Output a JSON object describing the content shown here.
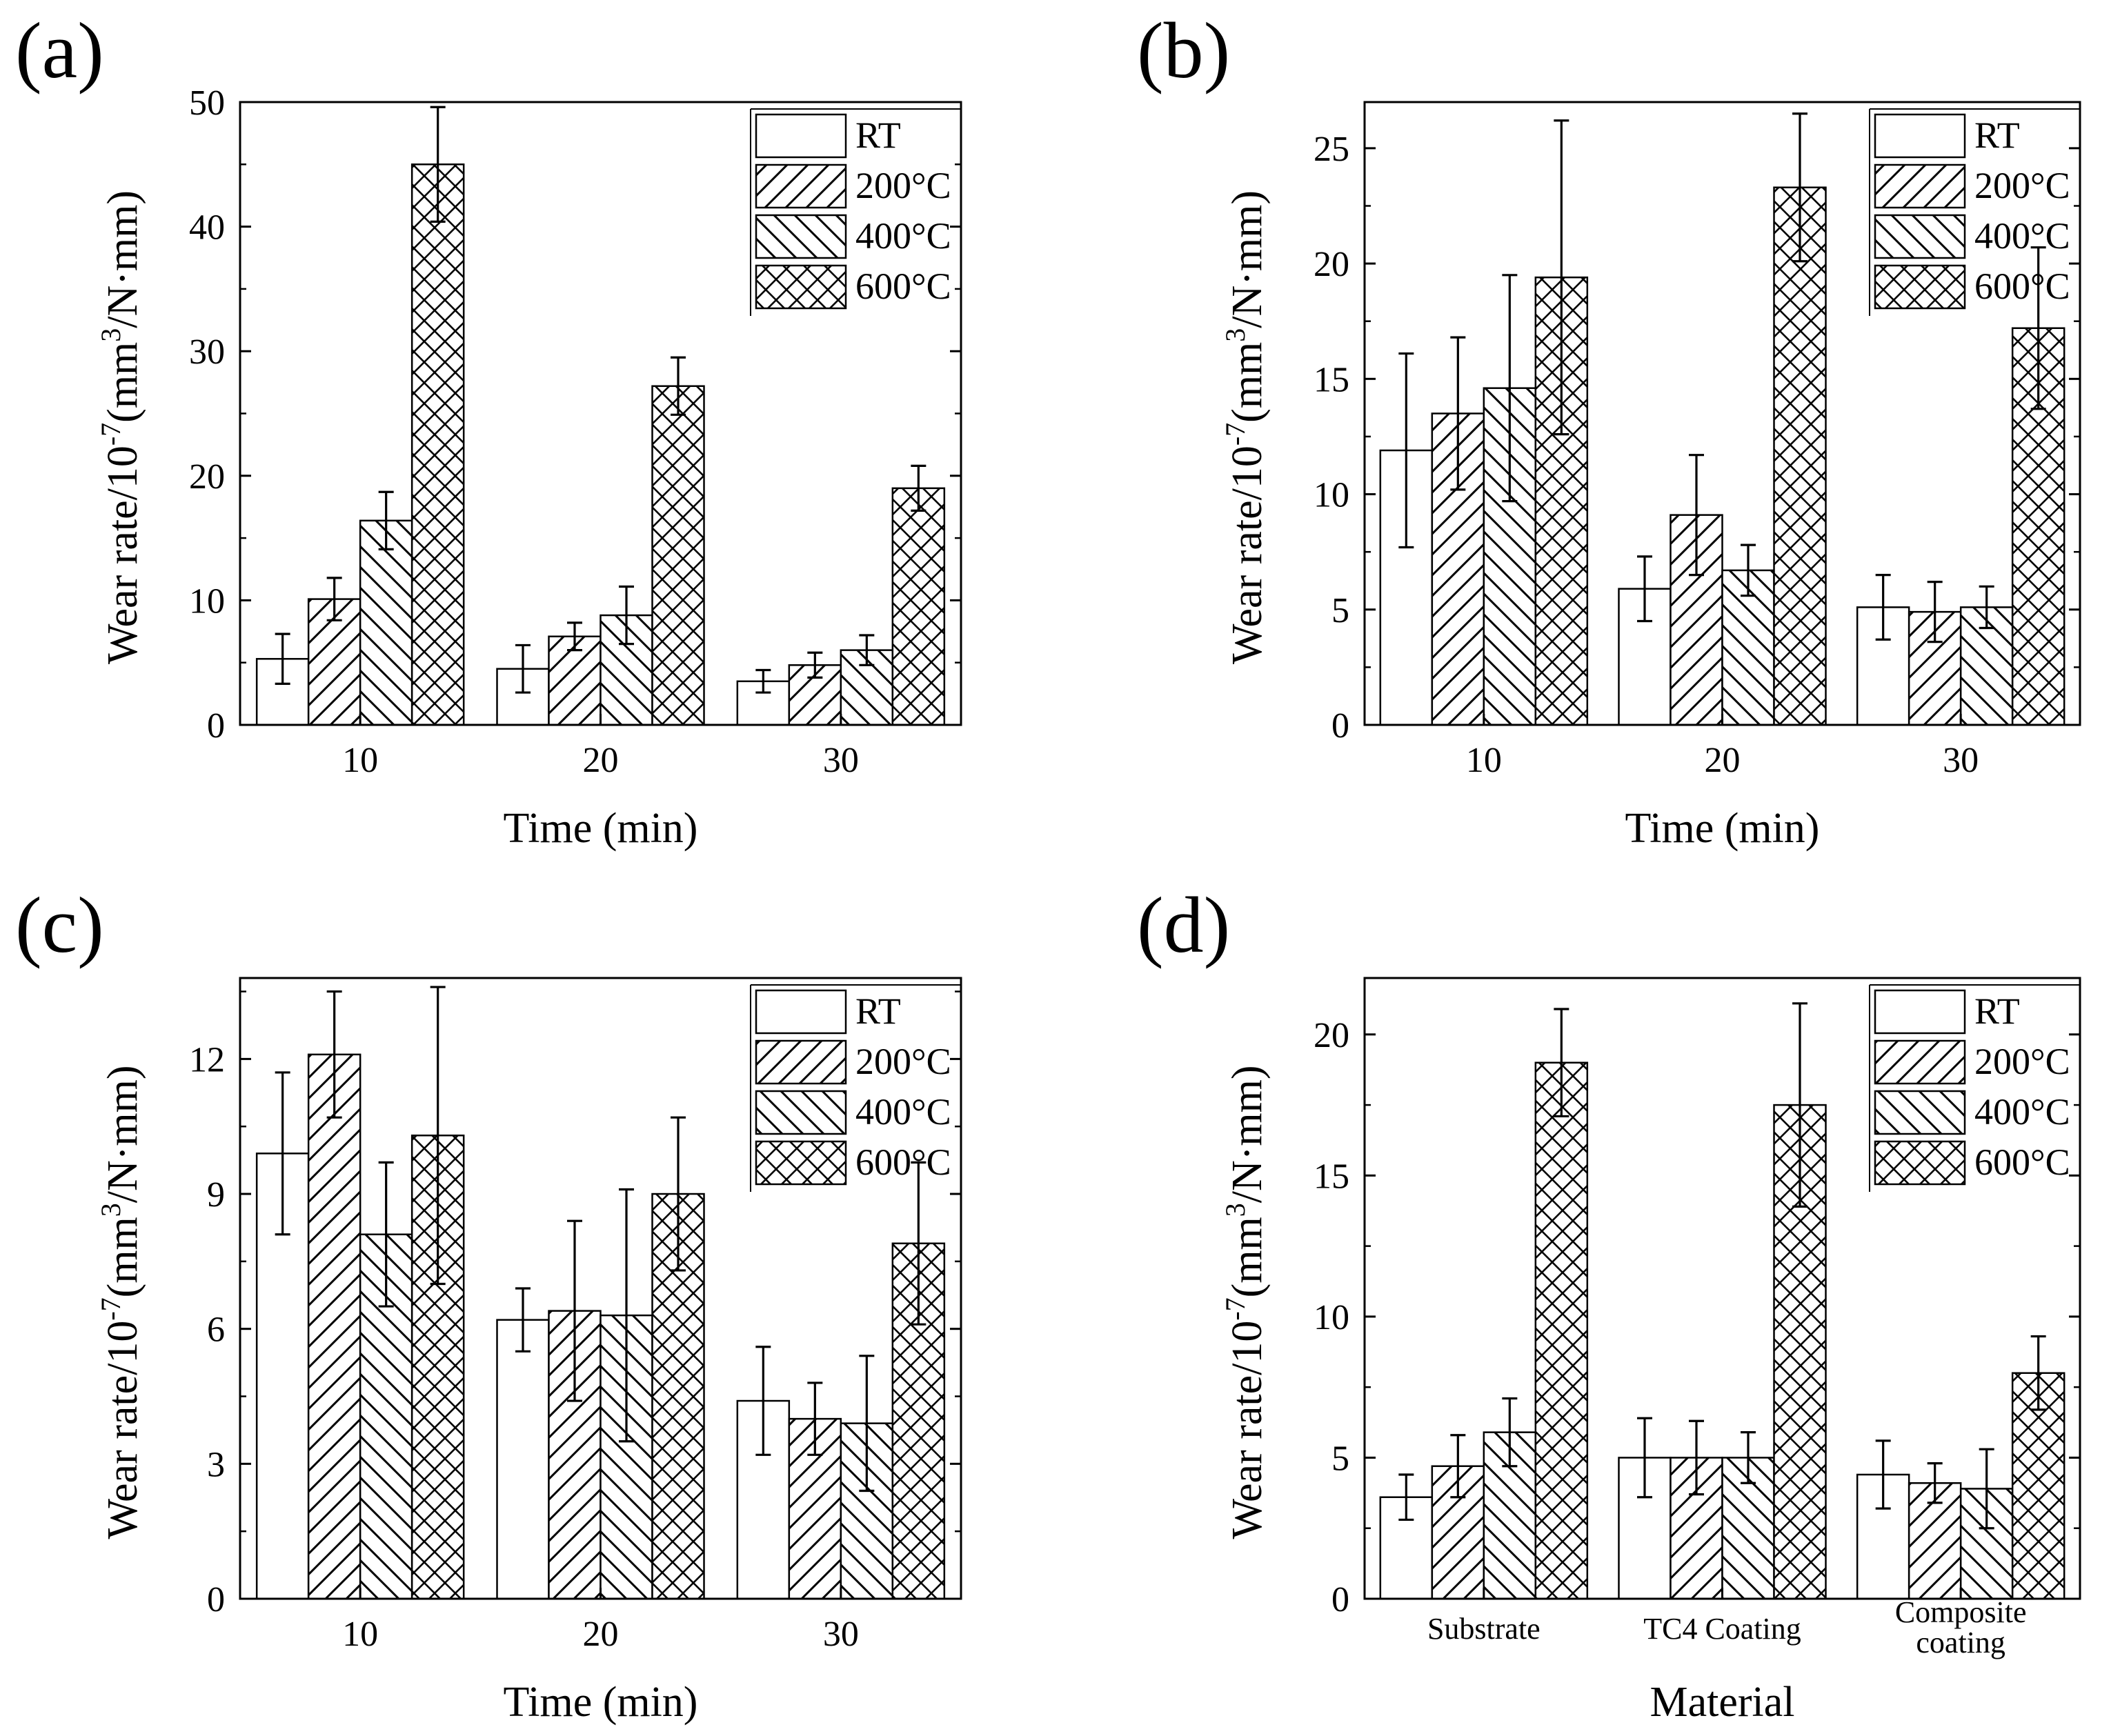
{
  "legend": [
    "RT",
    "200°C",
    "400°C",
    "600°C"
  ],
  "chart_data": [
    {
      "type": "bar",
      "panel": "(a)",
      "categories": [
        "10",
        "20",
        "30"
      ],
      "xlabel": "Time (min)",
      "ylabel": "Wear rate/10",
      "ylabel_exp1": "-7",
      "ylabel_mid": "(mm",
      "ylabel_exp2": "3",
      "ylabel_end": "/N·mm)",
      "ylim": [
        0,
        50
      ],
      "yticks": [
        0,
        10,
        20,
        30,
        40,
        50
      ],
      "legend_position": "top-right",
      "series": [
        {
          "name": "RT",
          "values": [
            5.3,
            4.5,
            3.5
          ],
          "errors": [
            2.0,
            1.9,
            0.9
          ]
        },
        {
          "name": "200°C",
          "values": [
            10.1,
            7.1,
            4.8
          ],
          "errors": [
            1.7,
            1.1,
            1.0
          ]
        },
        {
          "name": "400°C",
          "values": [
            16.4,
            8.8,
            6.0
          ],
          "errors": [
            2.3,
            2.3,
            1.2
          ]
        },
        {
          "name": "600°C",
          "values": [
            45.0,
            27.2,
            19.0
          ],
          "errors": [
            4.6,
            2.3,
            1.8
          ]
        }
      ]
    },
    {
      "type": "bar",
      "panel": "(b)",
      "categories": [
        "10",
        "20",
        "30"
      ],
      "xlabel": "Time (min)",
      "ylabel": "Wear rate/10",
      "ylabel_exp1": "-7",
      "ylabel_mid": "(mm",
      "ylabel_exp2": "3",
      "ylabel_end": "/N·mm)",
      "ylim": [
        0,
        27
      ],
      "yticks": [
        0,
        5,
        10,
        15,
        20,
        25
      ],
      "legend_position": "top-right",
      "series": [
        {
          "name": "RT",
          "values": [
            11.9,
            5.9,
            5.1
          ],
          "errors": [
            4.2,
            1.4,
            1.4
          ]
        },
        {
          "name": "200°C",
          "values": [
            13.5,
            9.1,
            4.9
          ],
          "errors": [
            3.3,
            2.6,
            1.3
          ]
        },
        {
          "name": "400°C",
          "values": [
            14.6,
            6.7,
            5.1
          ],
          "errors": [
            4.9,
            1.1,
            0.9
          ]
        },
        {
          "name": "600°C",
          "values": [
            19.4,
            23.3,
            17.2
          ],
          "errors": [
            6.8,
            3.2,
            3.5
          ]
        }
      ]
    },
    {
      "type": "bar",
      "panel": "(c)",
      "categories": [
        "10",
        "20",
        "30"
      ],
      "xlabel": "Time (min)",
      "ylabel": "Wear rate/10",
      "ylabel_exp1": "-7",
      "ylabel_mid": "(mm",
      "ylabel_exp2": "3",
      "ylabel_end": "/N·mm)",
      "ylim": [
        0,
        13.8
      ],
      "yticks": [
        0,
        3,
        6,
        9,
        12
      ],
      "legend_position": "top-right",
      "series": [
        {
          "name": "RT",
          "values": [
            9.9,
            6.2,
            4.4
          ],
          "errors": [
            1.8,
            0.7,
            1.2
          ]
        },
        {
          "name": "200°C",
          "values": [
            12.1,
            6.4,
            4.0
          ],
          "errors": [
            1.4,
            2.0,
            0.8
          ]
        },
        {
          "name": "400°C",
          "values": [
            8.1,
            6.3,
            3.9
          ],
          "errors": [
            1.6,
            2.8,
            1.5
          ]
        },
        {
          "name": "600°C",
          "values": [
            10.3,
            9.0,
            7.9
          ],
          "errors": [
            3.3,
            1.7,
            1.8
          ]
        }
      ]
    },
    {
      "type": "bar",
      "panel": "(d)",
      "categories": [
        "Substrate",
        "TC4 Coating",
        "Composite coating"
      ],
      "category_lines": [
        [
          "Substrate"
        ],
        [
          "TC4 Coating"
        ],
        [
          "Composite",
          "coating"
        ]
      ],
      "xlabel": "Material",
      "ylabel": "Wear rate/10",
      "ylabel_exp1": "-7",
      "ylabel_mid": "(mm",
      "ylabel_exp2": "3",
      "ylabel_end": "/N·mm)",
      "ylim": [
        0,
        22
      ],
      "yticks": [
        0,
        5,
        10,
        15,
        20
      ],
      "legend_position": "top-right",
      "series": [
        {
          "name": "RT",
          "values": [
            3.6,
            5.0,
            4.4
          ],
          "errors": [
            0.8,
            1.4,
            1.2
          ]
        },
        {
          "name": "200°C",
          "values": [
            4.7,
            5.0,
            4.1
          ],
          "errors": [
            1.1,
            1.3,
            0.7
          ]
        },
        {
          "name": "400°C",
          "values": [
            5.9,
            5.0,
            3.9
          ],
          "errors": [
            1.2,
            0.9,
            1.4
          ]
        },
        {
          "name": "600°C",
          "values": [
            19.0,
            17.5,
            8.0
          ],
          "errors": [
            1.9,
            3.6,
            1.3
          ]
        }
      ]
    }
  ]
}
